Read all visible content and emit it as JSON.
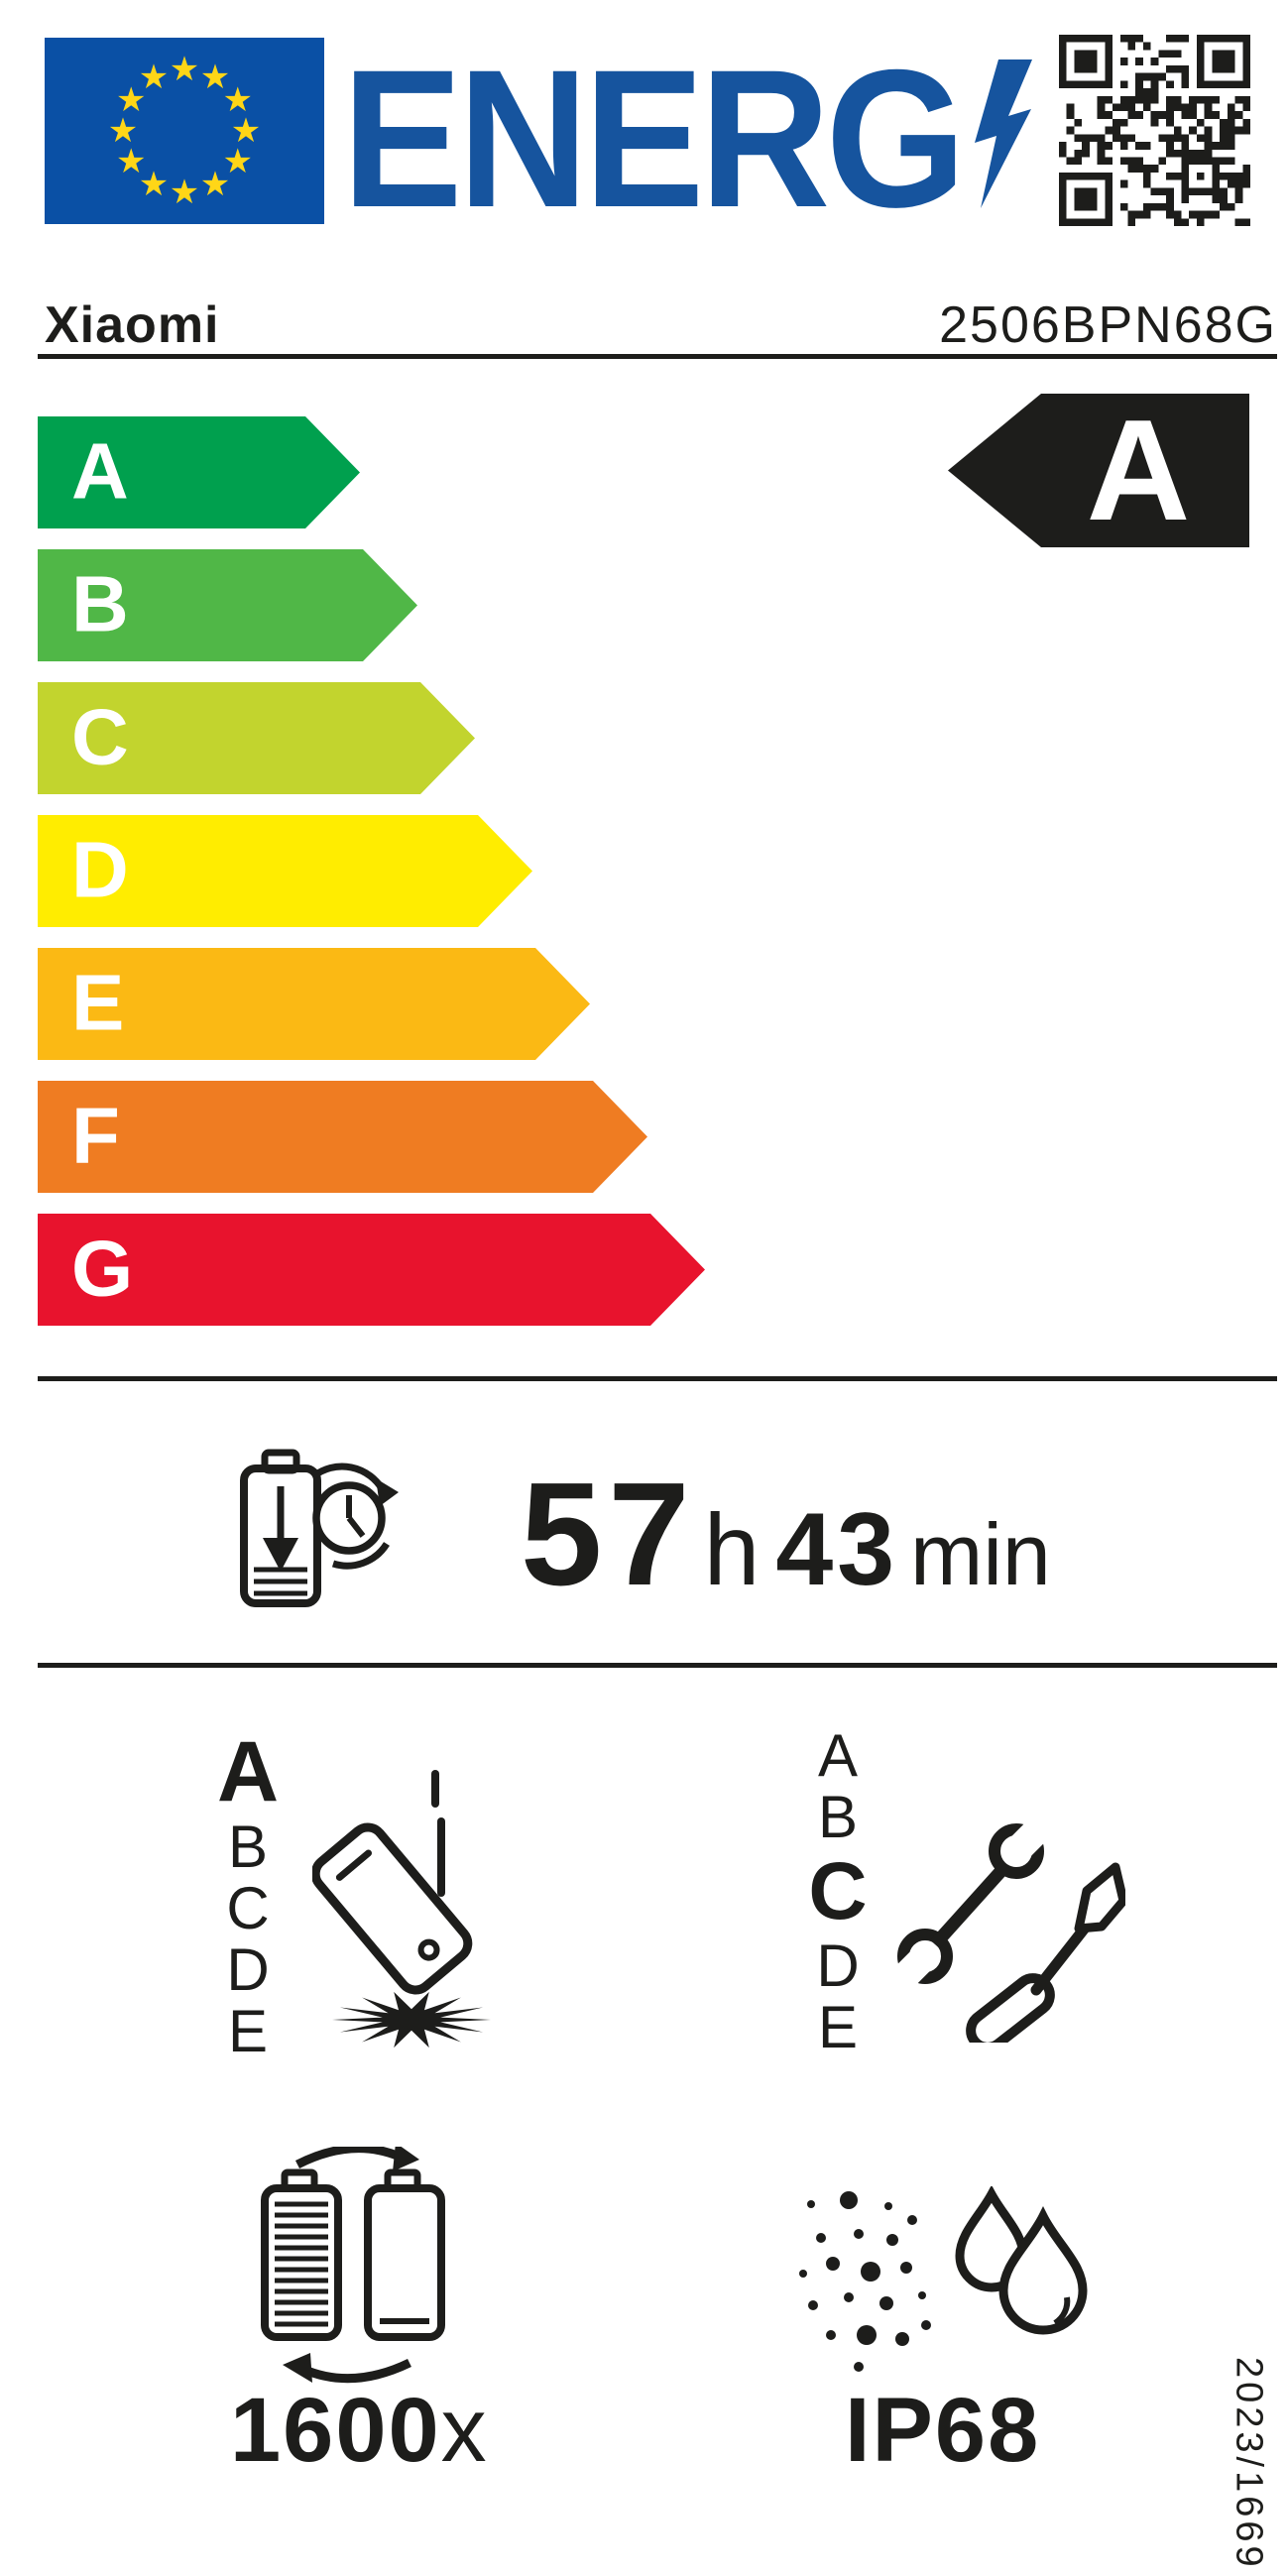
{
  "header": {
    "logo_text": "ENERG",
    "icons": [
      "eu-flag-icon",
      "lightning-bolt-icon",
      "qr-code-icon"
    ]
  },
  "brand": {
    "name": "Xiaomi",
    "model": "2506BPN68G"
  },
  "energy_scale": {
    "grades": [
      {
        "letter": "A",
        "color": "#00a04e"
      },
      {
        "letter": "B",
        "color": "#50b747"
      },
      {
        "letter": "C",
        "color": "#c2d42e"
      },
      {
        "letter": "D",
        "color": "#ffed00"
      },
      {
        "letter": "E",
        "color": "#fbb914"
      },
      {
        "letter": "F",
        "color": "#ef7c22"
      },
      {
        "letter": "G",
        "color": "#e8132d"
      }
    ],
    "rating": {
      "letter": "A",
      "arrow_color": "#1d1d1b"
    }
  },
  "battery_endurance": {
    "icon": "battery-discharge-clock-icon",
    "hours": "57",
    "hours_unit": "h",
    "minutes": "43",
    "minutes_unit": "min"
  },
  "drop_resistance": {
    "icon": "falling-phone-impact-icon",
    "classes": [
      "A",
      "B",
      "C",
      "D",
      "E"
    ],
    "rating": "A"
  },
  "repairability": {
    "icon": "wrench-screwdriver-icon",
    "classes": [
      "A",
      "B",
      "C",
      "D",
      "E"
    ],
    "rating": "C"
  },
  "battery_cycles": {
    "icon": "battery-recharge-cycle-icon",
    "value": "1600",
    "unit": "x"
  },
  "ingress_protection": {
    "icon": "dust-water-drops-icon",
    "value": "IP68"
  },
  "regulation": "2023/1669",
  "colors": {
    "flag_blue": "#0a50a5",
    "star_yellow": "#ffd617",
    "logo_blue": "#16549e",
    "ink": "#1d1d1b"
  }
}
